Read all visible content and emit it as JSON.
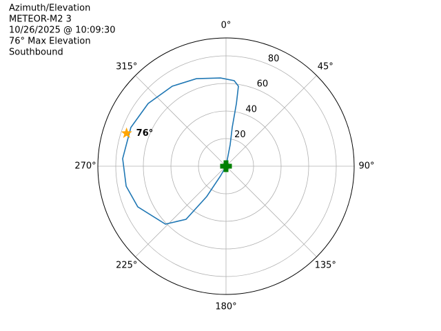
{
  "chart_data": {
    "type": "polar",
    "title_lines": [
      "Azimuth/Elevation",
      "METEOR-M2 3",
      "10/26/2025 @ 10:09:30",
      "76° Max Elevation",
      "Southbound"
    ],
    "theta_direction": "clockwise",
    "theta_zero": "N",
    "xticks": [
      {
        "value": 0,
        "label": "0°"
      },
      {
        "value": 45,
        "label": "45°"
      },
      {
        "value": 90,
        "label": "90°"
      },
      {
        "value": 135,
        "label": "135°"
      },
      {
        "value": 180,
        "label": "180°"
      },
      {
        "value": 225,
        "label": "225°"
      },
      {
        "value": 270,
        "label": "270°"
      },
      {
        "value": 315,
        "label": "315°"
      }
    ],
    "ylim": [
      0,
      93
    ],
    "yticks": [
      20,
      40,
      60,
      80
    ],
    "grid": true,
    "series": [
      {
        "color": "#1f77b4",
        "theta": [
          0,
          11,
          9.1,
          9.4,
          8.8,
          5.5,
          356.4,
          341.3,
          326.1,
          308.8,
          292.1,
          274.2,
          258.7,
          245.3,
          226.3,
          217,
          212.5,
          209.7,
          0
        ],
        "r": [
          0,
          15.8,
          28.4,
          46.1,
          58.7,
          62.3,
          64.1,
          67.0,
          69.9,
          72.5,
          74.5,
          75.2,
          73.9,
          70.5,
          60.8,
          48.2,
          26.1,
          8.1,
          0
        ]
      }
    ],
    "start_marker": {
      "theta": 0,
      "r": 0,
      "color": "#008000"
    },
    "max_marker": {
      "theta": 288.3,
      "r": 76,
      "color": "#ffa500",
      "label": "76°"
    }
  }
}
